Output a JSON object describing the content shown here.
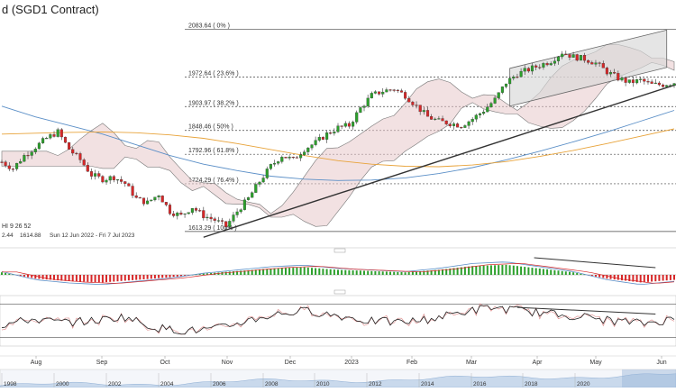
{
  "chart_data": {
    "type": "candlestick",
    "title": "d (SGD1 Contract)",
    "price_range": [
      1590,
      2110
    ],
    "fib_levels": [
      {
        "label": "2083.64 ( 0% )",
        "value": 2083.64
      },
      {
        "label": "1972.64 ( 23.6% )",
        "value": 1972.64
      },
      {
        "label": "1903.97 ( 38.2% )",
        "value": 1903.97
      },
      {
        "label": "1848.46 ( 50% )",
        "value": 1848.46
      },
      {
        "label": "1792.96 ( 61.8% )",
        "value": 1792.96
      },
      {
        "label": "1724.29 ( 76.4% )",
        "value": 1724.29
      },
      {
        "label": "1613.29 ( 100% )",
        "value": 1613.29
      }
    ],
    "ichimoku_label": "HI 9 26 52",
    "info_values": [
      "2.44",
      "1614.88",
      "Sun 12 Jun 2022 - Fri 7 Jul 2023"
    ],
    "x_months": [
      "Aug",
      "Sep",
      "Oct",
      "Nov",
      "Dec",
      "2023",
      "Feb",
      "Mar",
      "Apr",
      "May",
      "Jun"
    ],
    "navigator_years": [
      "1998",
      "2000",
      "2002",
      "2004",
      "2006",
      "2008",
      "2010",
      "2012",
      "2014",
      "2016",
      "2018",
      "2020"
    ],
    "close_path": [
      [
        0,
        1775
      ],
      [
        6,
        1760
      ],
      [
        12,
        1790
      ],
      [
        18,
        1810
      ],
      [
        24,
        1830
      ],
      [
        30,
        1845
      ],
      [
        36,
        1805
      ],
      [
        42,
        1780
      ],
      [
        48,
        1745
      ],
      [
        54,
        1735
      ],
      [
        60,
        1740
      ],
      [
        66,
        1725
      ],
      [
        72,
        1690
      ],
      [
        78,
        1680
      ],
      [
        84,
        1700
      ],
      [
        90,
        1660
      ],
      [
        96,
        1650
      ],
      [
        102,
        1670
      ],
      [
        108,
        1650
      ],
      [
        114,
        1640
      ],
      [
        120,
        1625
      ],
      [
        126,
        1660
      ],
      [
        132,
        1690
      ],
      [
        138,
        1730
      ],
      [
        144,
        1765
      ],
      [
        150,
        1790
      ],
      [
        156,
        1780
      ],
      [
        162,
        1805
      ],
      [
        168,
        1820
      ],
      [
        174,
        1840
      ],
      [
        180,
        1855
      ],
      [
        186,
        1860
      ],
      [
        192,
        1900
      ],
      [
        198,
        1930
      ],
      [
        204,
        1940
      ],
      [
        210,
        1945
      ],
      [
        216,
        1930
      ],
      [
        222,
        1905
      ],
      [
        228,
        1880
      ],
      [
        234,
        1870
      ],
      [
        240,
        1865
      ],
      [
        246,
        1860
      ],
      [
        252,
        1875
      ],
      [
        258,
        1895
      ],
      [
        264,
        1920
      ],
      [
        270,
        1960
      ],
      [
        276,
        1980
      ],
      [
        282,
        1990
      ],
      [
        288,
        2000
      ],
      [
        294,
        2010
      ],
      [
        300,
        2030
      ],
      [
        306,
        2020
      ],
      [
        312,
        2015
      ],
      [
        318,
        2005
      ],
      [
        324,
        1985
      ],
      [
        330,
        1970
      ],
      [
        336,
        1960
      ],
      [
        342,
        1965
      ],
      [
        348,
        1955
      ],
      [
        354,
        1955
      ],
      [
        360,
        1960
      ]
    ],
    "ma_slow": [
      1905,
      1880,
      1860,
      1840,
      1815,
      1790,
      1770,
      1755,
      1742,
      1735,
      1732,
      1733,
      1738,
      1748,
      1762,
      1780,
      1800,
      1822,
      1845,
      1870,
      1895
    ],
    "ma_orange": [
      1840,
      1842,
      1844,
      1845,
      1843,
      1838,
      1830,
      1818,
      1804,
      1790,
      1778,
      1770,
      1765,
      1764,
      1768,
      1776,
      1788,
      1802,
      1818,
      1835,
      1852
    ],
    "macd": [
      0.2,
      -0.3,
      -0.5,
      -0.6,
      -0.4,
      -0.2,
      0.1,
      0.3,
      0.5,
      0.6,
      0.4,
      0.3,
      0.2,
      0.4,
      0.7,
      0.8,
      0.5,
      0.2,
      -0.3,
      -0.6,
      -0.4
    ],
    "rsi": [
      45,
      52,
      48,
      50,
      55,
      42,
      38,
      40,
      50,
      58,
      62,
      56,
      50,
      48,
      52,
      60,
      66,
      62,
      58,
      55,
      50,
      47,
      52
    ]
  }
}
